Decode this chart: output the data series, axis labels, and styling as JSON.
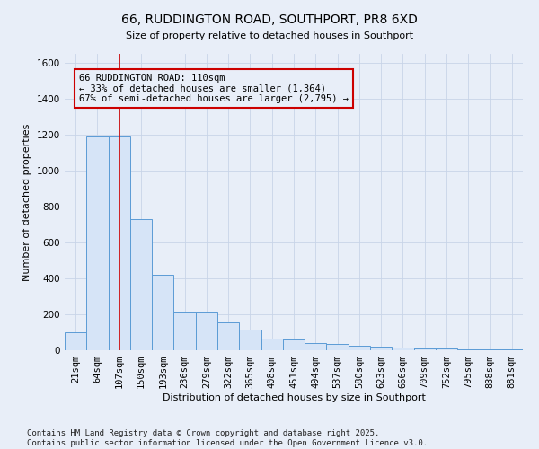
{
  "title": "66, RUDDINGTON ROAD, SOUTHPORT, PR8 6XD",
  "subtitle": "Size of property relative to detached houses in Southport",
  "xlabel": "Distribution of detached houses by size in Southport",
  "ylabel": "Number of detached properties",
  "categories": [
    "21sqm",
    "64sqm",
    "107sqm",
    "150sqm",
    "193sqm",
    "236sqm",
    "279sqm",
    "322sqm",
    "365sqm",
    "408sqm",
    "451sqm",
    "494sqm",
    "537sqm",
    "580sqm",
    "623sqm",
    "666sqm",
    "709sqm",
    "752sqm",
    "795sqm",
    "838sqm",
    "881sqm"
  ],
  "bar_heights": [
    100,
    1190,
    1190,
    730,
    420,
    215,
    215,
    155,
    115,
    65,
    60,
    40,
    35,
    25,
    20,
    15,
    12,
    8,
    5,
    5,
    3
  ],
  "bar_color": "#d6e4f7",
  "bar_edge_color": "#5b9bd5",
  "vline_x_index": 2,
  "vline_color": "#cc0000",
  "annotation_text": "66 RUDDINGTON ROAD: 110sqm\n← 33% of detached houses are smaller (1,364)\n67% of semi-detached houses are larger (2,795) →",
  "annotation_box_color": "#cc0000",
  "annotation_face_color": "#e8eef8",
  "ylim": [
    0,
    1650
  ],
  "yticks": [
    0,
    200,
    400,
    600,
    800,
    1000,
    1200,
    1400,
    1600
  ],
  "footer_text": "Contains HM Land Registry data © Crown copyright and database right 2025.\nContains public sector information licensed under the Open Government Licence v3.0.",
  "background_color": "#e8eef8",
  "grid_color": "#c8d4e8",
  "title_fontsize": 10,
  "axis_label_fontsize": 8,
  "tick_fontsize": 7.5,
  "annotation_fontsize": 7.5,
  "footer_fontsize": 6.5
}
